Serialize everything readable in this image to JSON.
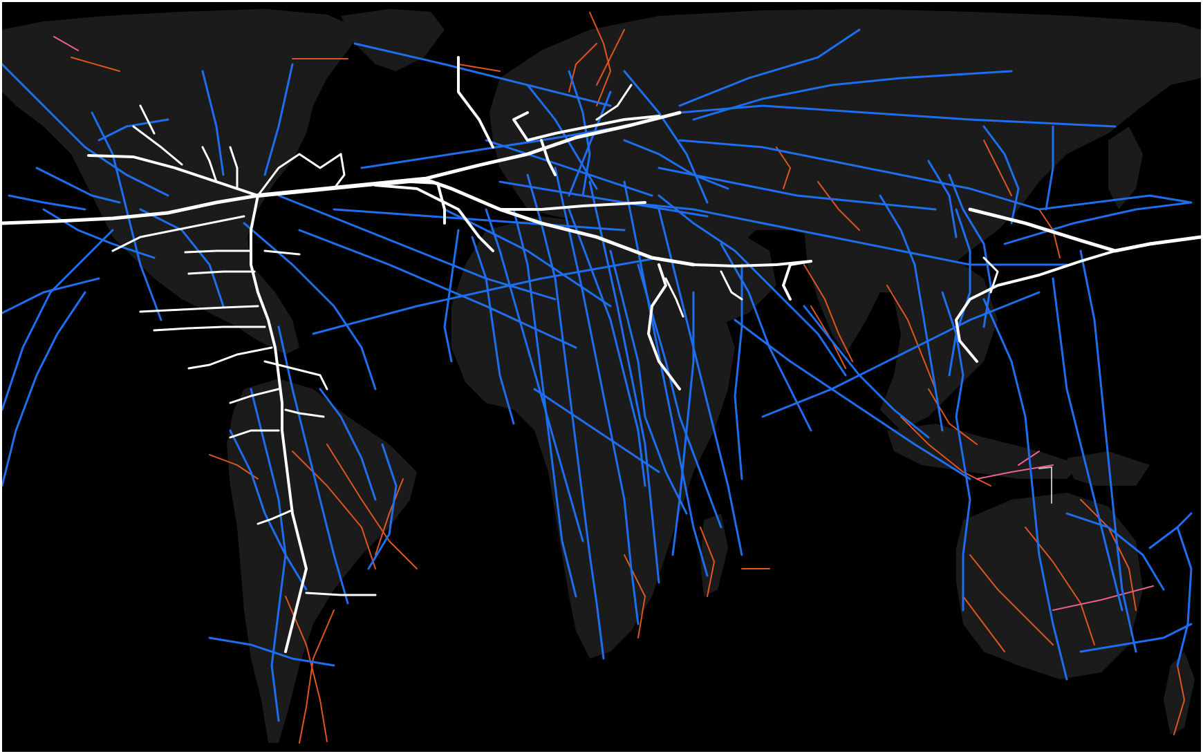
{
  "map": {
    "kind": "world-flow-map",
    "background_color": "#000000",
    "land_color": "#1b1b1b",
    "frame_color": "#ffffff",
    "flow_colors": {
      "major": "#ffffff",
      "secondary": "#1e6ff0",
      "minor": "#e0561e",
      "rare": "#ee5f96",
      "marker": "#bdbdbd"
    }
  }
}
